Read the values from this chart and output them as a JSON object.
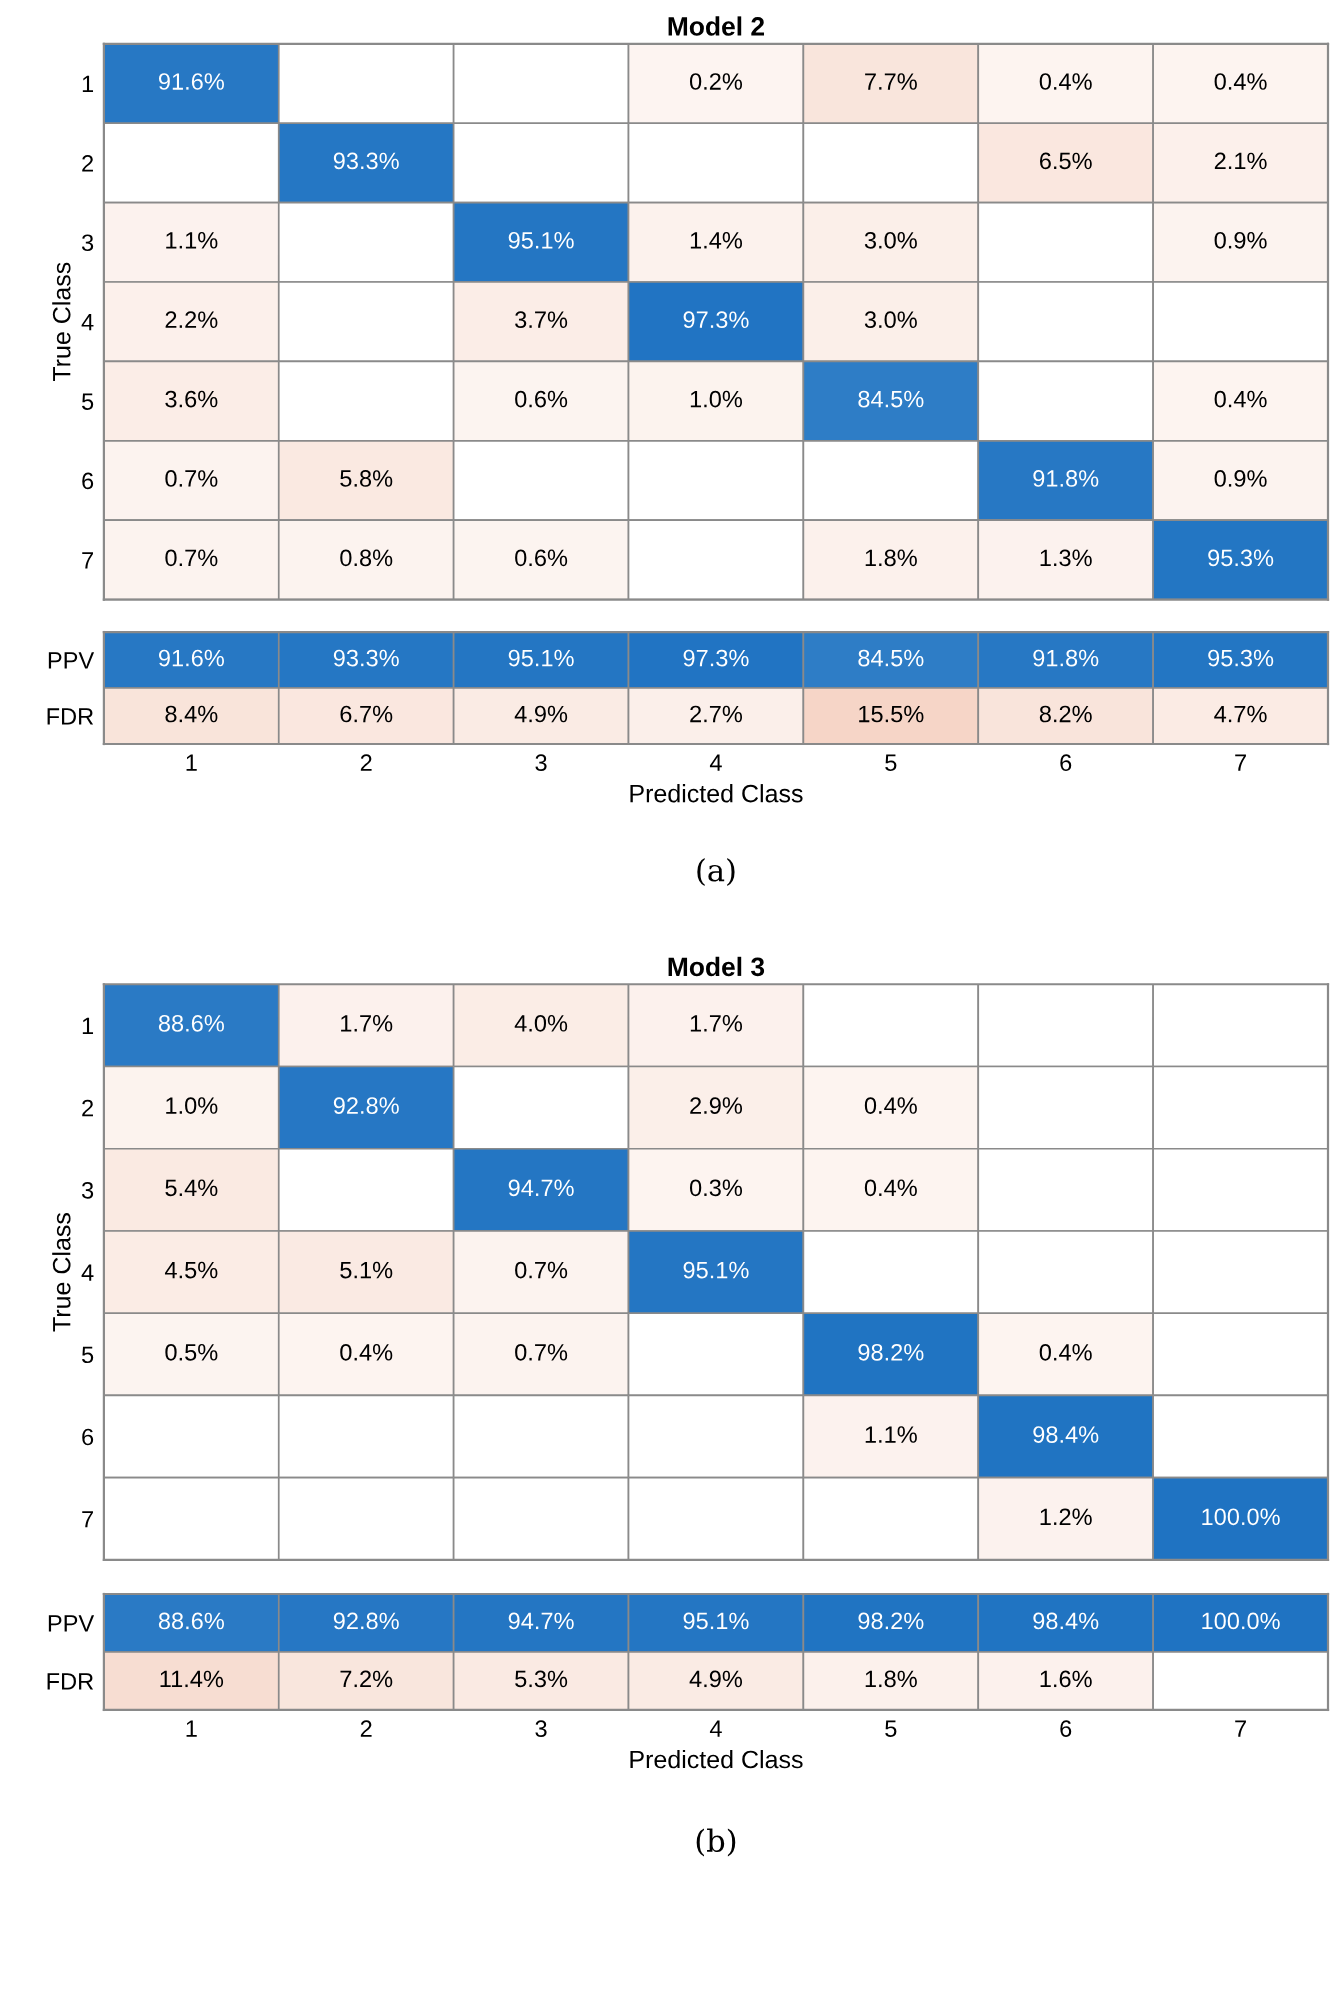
{
  "chart_data": [
    {
      "type": "heatmap",
      "title": "Model 2",
      "ylabel": "True Class",
      "tick_labels": "y",
      "categories": [
        "1",
        "2",
        "3",
        "4",
        "5",
        "6",
        "7"
      ],
      "y_categories": [
        "1",
        "2",
        "3",
        "4",
        "5",
        "6",
        "7"
      ],
      "cells": [
        [
          91.6,
          null,
          null,
          0.2,
          7.7,
          0.4,
          0.4
        ],
        [
          null,
          93.3,
          null,
          null,
          null,
          6.5,
          2.1
        ],
        [
          1.1,
          null,
          95.1,
          1.4,
          3.0,
          null,
          0.9
        ],
        [
          2.2,
          null,
          3.7,
          97.3,
          3.0,
          null,
          null
        ],
        [
          3.6,
          null,
          0.6,
          1.0,
          84.5,
          null,
          0.4
        ],
        [
          0.7,
          5.8,
          null,
          null,
          null,
          91.8,
          0.9
        ],
        [
          0.7,
          0.8,
          0.6,
          null,
          1.8,
          1.3,
          95.3
        ]
      ],
      "cell_labels": [
        [
          "91.6%",
          null,
          null,
          "0.2%",
          "7.7%",
          "0.4%",
          "0.4%"
        ],
        [
          null,
          "93.3%",
          null,
          null,
          null,
          "6.5%",
          "2.1%"
        ],
        [
          "1.1%",
          null,
          "95.1%",
          "1.4%",
          "3.0%",
          null,
          "0.9%"
        ],
        [
          "2.2%",
          null,
          "3.7%",
          "97.3%",
          "3.0%",
          null,
          null
        ],
        [
          "3.6%",
          null,
          "0.6%",
          "1.0%",
          "84.5%",
          null,
          "0.4%"
        ],
        [
          "0.7%",
          "5.8%",
          null,
          null,
          null,
          "91.8%",
          "0.9%"
        ],
        [
          "0.7%",
          "0.8%",
          "0.6%",
          null,
          "1.8%",
          "1.3%",
          "95.3%"
        ]
      ]
    },
    {
      "type": "heatmap",
      "xlabel": "Predicted Class",
      "annotations": [
        "(a)"
      ],
      "categories": [
        "1",
        "2",
        "3",
        "4",
        "5",
        "6",
        "7"
      ],
      "y_categories": [
        "PPV",
        "FDR"
      ],
      "cells": [
        [
          91.6,
          93.3,
          95.1,
          97.3,
          84.5,
          91.8,
          95.3
        ],
        [
          8.4,
          6.7,
          4.9,
          2.7,
          15.5,
          8.2,
          4.7
        ]
      ],
      "cell_labels": [
        [
          "91.6%",
          "93.3%",
          "95.1%",
          "97.3%",
          "84.5%",
          "91.8%",
          "95.3%"
        ],
        [
          "8.4%",
          "6.7%",
          "4.9%",
          "2.7%",
          "15.5%",
          "8.2%",
          "4.7%"
        ]
      ]
    },
    {
      "type": "heatmap",
      "title": "Model 3",
      "ylabel": "True Class",
      "tick_labels": "y",
      "categories": [
        "1",
        "2",
        "3",
        "4",
        "5",
        "6",
        "7"
      ],
      "y_categories": [
        "1",
        "2",
        "3",
        "4",
        "5",
        "6",
        "7"
      ],
      "cells": [
        [
          88.6,
          1.7,
          4.0,
          1.7,
          null,
          null,
          null
        ],
        [
          1.0,
          92.8,
          null,
          2.9,
          0.4,
          null,
          null
        ],
        [
          5.4,
          null,
          94.7,
          0.3,
          0.4,
          null,
          null
        ],
        [
          4.5,
          5.1,
          0.7,
          95.1,
          null,
          null,
          null
        ],
        [
          0.5,
          0.4,
          0.7,
          null,
          98.2,
          0.4,
          null
        ],
        [
          null,
          null,
          null,
          null,
          1.1,
          98.4,
          null
        ],
        [
          null,
          null,
          null,
          null,
          null,
          1.2,
          100.0
        ]
      ],
      "cell_labels": [
        [
          "88.6%",
          "1.7%",
          "4.0%",
          "1.7%",
          null,
          null,
          null
        ],
        [
          "1.0%",
          "92.8%",
          null,
          "2.9%",
          "0.4%",
          null,
          null
        ],
        [
          "5.4%",
          null,
          "94.7%",
          "0.3%",
          "0.4%",
          null,
          null
        ],
        [
          "4.5%",
          "5.1%",
          "0.7%",
          "95.1%",
          null,
          null,
          null
        ],
        [
          "0.5%",
          "0.4%",
          "0.7%",
          null,
          "98.2%",
          "0.4%",
          null
        ],
        [
          null,
          null,
          null,
          null,
          "1.1%",
          "98.4%",
          null
        ],
        [
          null,
          null,
          null,
          null,
          null,
          "1.2%",
          "100.0%"
        ]
      ]
    },
    {
      "type": "heatmap",
      "xlabel": "Predicted Class",
      "annotations": [
        "(b)"
      ],
      "categories": [
        "1",
        "2",
        "3",
        "4",
        "5",
        "6",
        "7"
      ],
      "y_categories": [
        "PPV",
        "FDR"
      ],
      "cells": [
        [
          88.6,
          92.8,
          94.7,
          95.1,
          98.2,
          98.4,
          100.0
        ],
        [
          11.4,
          7.2,
          5.3,
          4.9,
          1.8,
          1.6,
          null
        ]
      ],
      "cell_labels": [
        [
          "88.6%",
          "92.8%",
          "94.7%",
          "95.1%",
          "98.2%",
          "98.4%",
          "100.0%"
        ],
        [
          "11.4%",
          "7.2%",
          "5.3%",
          "4.9%",
          "1.8%",
          "1.6%",
          null
        ]
      ]
    }
  ]
}
